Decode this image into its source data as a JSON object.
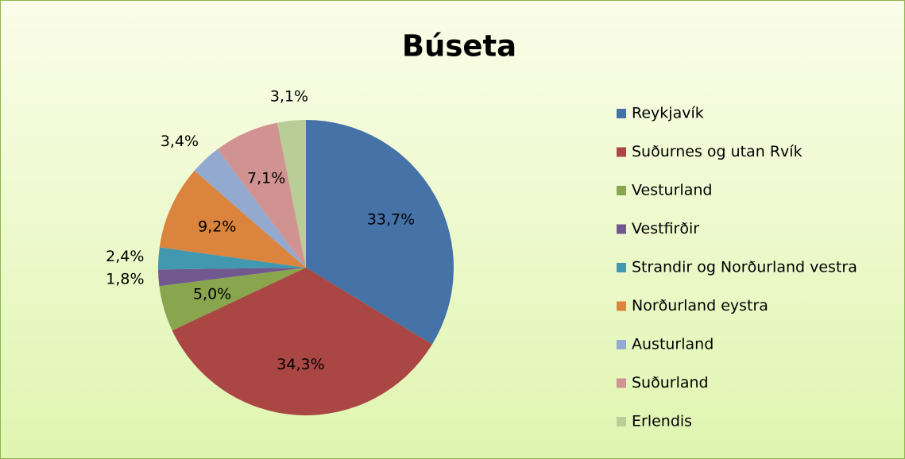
{
  "chart_data": {
    "type": "pie",
    "title": "Búseta",
    "categories": [
      "Reykjavík",
      "Suðurnes og utan Rvík",
      "Vesturland",
      "Vestfirðir",
      "Strandir og Norðurland vestra",
      "Norðurland eystra",
      "Austurland",
      "Suðurland",
      "Erlendis"
    ],
    "values": [
      33.7,
      34.3,
      5.0,
      1.8,
      2.4,
      9.2,
      3.4,
      7.1,
      3.1
    ],
    "value_labels": [
      "33,7%",
      "34,3%",
      "5,0%",
      "1,8%",
      "2,4%",
      "9,2%",
      "3,4%",
      "7,1%",
      "3,1%"
    ],
    "colors": [
      "#4572A7",
      "#AA4643",
      "#89A54E",
      "#71588F",
      "#4198AF",
      "#DB843D",
      "#93A9CF",
      "#D19392",
      "#B9CD96"
    ],
    "legend": "right"
  }
}
